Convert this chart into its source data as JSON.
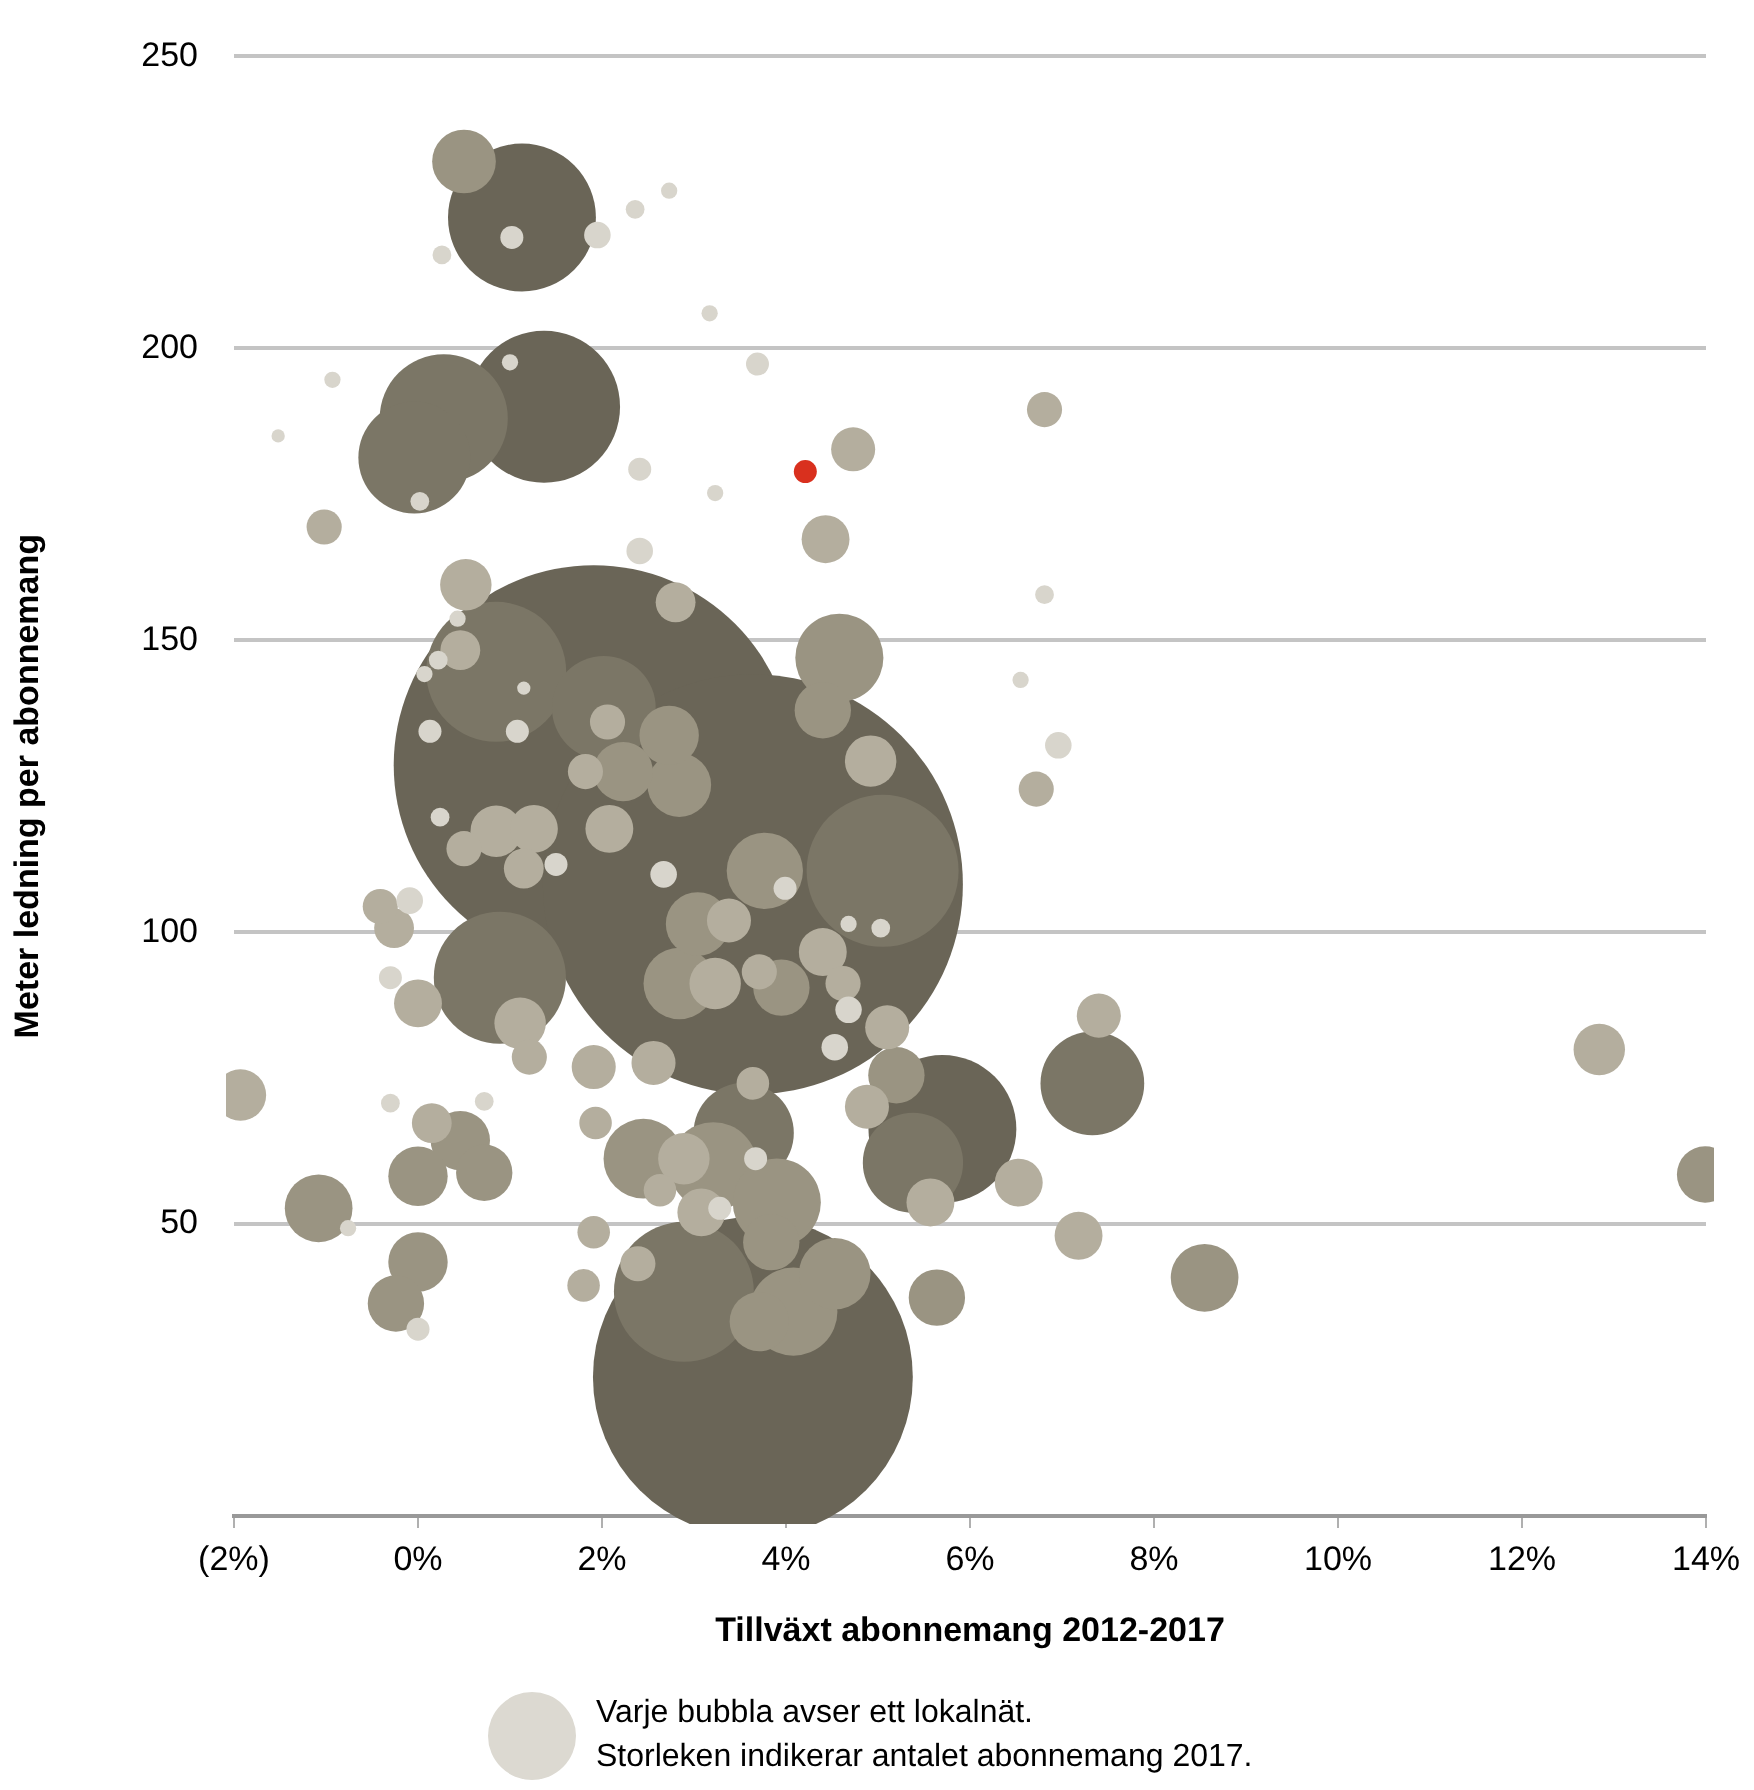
{
  "chart_data": {
    "type": "bubble",
    "xlabel": "Tillväxt abonnemang 2012-2017",
    "ylabel": "Meter ledning per abonnemang",
    "xlim": [
      -2,
      14
    ],
    "xticks": [
      {
        "value": -2,
        "label": "(2%)"
      },
      {
        "value": 0,
        "label": "0%"
      },
      {
        "value": 2,
        "label": "2%"
      },
      {
        "value": 4,
        "label": "4%"
      },
      {
        "value": 6,
        "label": "6%"
      },
      {
        "value": 8,
        "label": "8%"
      },
      {
        "value": 10,
        "label": "10%"
      },
      {
        "value": 12,
        "label": "12%"
      },
      {
        "value": 14,
        "label": "14%"
      }
    ],
    "ylim": [
      0,
      250
    ],
    "yticks": [
      50,
      100,
      150,
      200,
      250
    ],
    "grid": "y",
    "annotations": [
      "Varje bubbla avser ett lokalnät.\nStorleken indikerar antalet abonnemang 2017."
    ],
    "series": [
      {
        "color": "#6a6557",
        "x": [
          1.91,
          3.64,
          3.64,
          1.13,
          1.37,
          5.7
        ],
        "values": [
          128.6,
          108.2,
          23.8,
          222.4,
          190,
          66.3
        ],
        "sizes": [
          0.907,
          1,
          0.58,
          0.124,
          0.131,
          0.124
        ]
      },
      {
        "color": "#7b7666",
        "x": [
          5.05,
          0.85,
          2.89,
          0.28,
          -0.04,
          0.89,
          7.33,
          2.02,
          3.54,
          5.38
        ],
        "values": [
          110.5,
          144.6,
          38.4,
          188,
          181.3,
          92.2,
          74.1,
          138.4,
          65.6,
          60.5
        ],
        "sizes": [
          0.131,
          0.111,
          0.111,
          0.093,
          0.071,
          0.099,
          0.061,
          0.061,
          0.057,
          0.057
        ]
      },
      {
        "color": "#9a9482",
        "x": [
          4.58,
          4.08,
          3.21,
          3.9,
          2.45,
          3.77,
          2.84,
          4.53,
          -1.08,
          8.55,
          0.5,
          2.84,
          3.04,
          2.73,
          2.23,
          0.46,
          0,
          0,
          3.71,
          4.4,
          3.95,
          3.84,
          -0.24,
          0.72,
          5.64,
          13.99,
          5.2
        ],
        "values": [
          147,
          35,
          59.9,
          53.7,
          61.2,
          110.5,
          91.2,
          41.5,
          52.7,
          40.8,
          232,
          125.2,
          101.4,
          133.7,
          127.5,
          64.3,
          58.2,
          43.5,
          33.3,
          138,
          90.5,
          46.9,
          36.4,
          58.8,
          37.4,
          58.5,
          75.5
        ],
        "sizes": [
          0.044,
          0.044,
          0.044,
          0.044,
          0.036,
          0.033,
          0.029,
          0.029,
          0.026,
          0.026,
          0.023,
          0.023,
          0.023,
          0.02,
          0.02,
          0.02,
          0.02,
          0.02,
          0.02,
          0.018,
          0.018,
          0.018,
          0.018,
          0.018,
          0.018,
          0.018,
          0.018
        ]
      },
      {
        "color": "#b4ae9e",
        "x": [
          4.92,
          0.85,
          0.52,
          1.11,
          3.23,
          2.89,
          -1.93,
          12.84,
          4.43,
          1.26,
          2.08,
          0,
          4.4,
          3.08,
          5.57,
          6.53,
          7.18,
          4.73,
          3.38,
          5.1,
          7.4,
          1.91,
          2.56,
          4.88,
          1.15,
          -0.26,
          2.8,
          0.46,
          0.15,
          -1.02,
          6.81,
          6.72,
          0.5,
          1.82,
          2.06,
          -0.41,
          1.21,
          3.71,
          4.62,
          2.39,
          1.93,
          1.8,
          2.63,
          3.64,
          1.91
        ],
        "values": [
          129.3,
          117.3,
          159.5,
          84.4,
          91.2,
          61.2,
          72.1,
          79.9,
          167.3,
          117.7,
          117.7,
          87.8,
          96.6,
          52,
          53.7,
          57.1,
          48,
          182.7,
          102,
          83.7,
          85.7,
          76.9,
          77.6,
          70.1,
          110.9,
          100.7,
          156.5,
          148.3,
          67.3,
          169.4,
          189.5,
          124.5,
          114.3,
          127.5,
          136,
          104.4,
          78.6,
          93.2,
          91.2,
          43.2,
          67.3,
          39.5,
          55.8,
          74.1,
          48.6
        ],
        "sizes": [
          0.015,
          0.015,
          0.015,
          0.015,
          0.015,
          0.015,
          0.015,
          0.015,
          0.013,
          0.013,
          0.013,
          0.013,
          0.013,
          0.013,
          0.013,
          0.013,
          0.013,
          0.011,
          0.011,
          0.011,
          0.011,
          0.011,
          0.011,
          0.011,
          0.009,
          0.009,
          0.009,
          0.009,
          0.009,
          0.007,
          0.007,
          0.007,
          0.007,
          0.007,
          0.007,
          0.007,
          0.007,
          0.007,
          0.007,
          0.007,
          0.006,
          0.006,
          0.006,
          0.006,
          0.006
        ]
      },
      {
        "color": "#d8d5cc",
        "x": [
          2.41,
          1.95,
          6.96,
          2.67,
          -0.09,
          4.53,
          4.68,
          1.02,
          3.69,
          2.41,
          0.13,
          1.08,
          1.5,
          3.99,
          -0.3,
          0,
          3.67,
          3.28,
          2.36,
          0.26,
          0.02,
          0.22,
          0.24,
          5.03,
          6.81,
          -0.3,
          0.72,
          2.73,
          3.17,
          -0.93,
          1,
          3.23,
          0.43,
          0.07,
          6.55,
          4.68,
          -0.76,
          -1.52,
          1.15
        ],
        "values": [
          165.3,
          219.4,
          132,
          109.9,
          105.4,
          80.3,
          86.7,
          219,
          197.3,
          179.3,
          134.4,
          134.4,
          111.6,
          107.5,
          92.2,
          32,
          61.2,
          52.7,
          223.8,
          216,
          173.8,
          146.6,
          119.7,
          100.7,
          157.8,
          70.7,
          71,
          227,
          206,
          194.6,
          197.6,
          175.2,
          153.7,
          144.2,
          143.2,
          101.4,
          49.3,
          185,
          141.8
        ],
        "sizes": [
          0.004,
          0.004,
          0.004,
          0.004,
          0.004,
          0.004,
          0.004,
          0.003,
          0.003,
          0.003,
          0.003,
          0.003,
          0.003,
          0.003,
          0.003,
          0.003,
          0.003,
          0.003,
          0.002,
          0.002,
          0.002,
          0.002,
          0.002,
          0.002,
          0.002,
          0.002,
          0.002,
          0.0015,
          0.0015,
          0.0015,
          0.0015,
          0.0015,
          0.0015,
          0.0015,
          0.0015,
          0.0015,
          0.0015,
          0.001,
          0.001
        ]
      },
      {
        "color": "#d9301e",
        "x": [
          4.21
        ],
        "values": [
          178.9
        ],
        "sizes": [
          0.003
        ]
      }
    ]
  }
}
